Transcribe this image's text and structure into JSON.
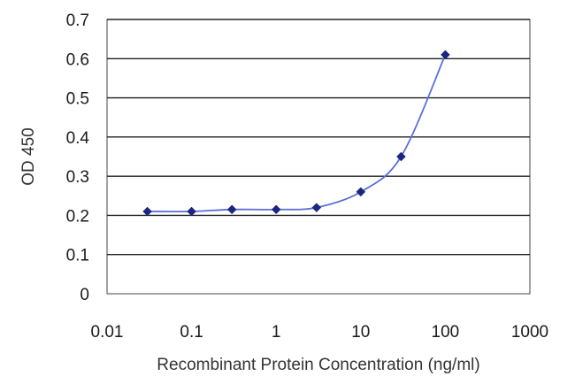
{
  "chart_data": {
    "type": "line",
    "title": "",
    "xlabel": "Recombinant Protein Concentration (ng/ml)",
    "ylabel": "OD 450",
    "x_scale": "log",
    "xlim": [
      0.01,
      1000
    ],
    "ylim": [
      0,
      0.7
    ],
    "x_ticks": [
      0.01,
      0.1,
      1,
      10,
      100,
      1000
    ],
    "x_tick_labels": [
      "0.01",
      "0.1",
      "1",
      "10",
      "100",
      "1000"
    ],
    "y_ticks": [
      0,
      0.1,
      0.2,
      0.3,
      0.4,
      0.5,
      0.6,
      0.7
    ],
    "y_tick_labels": [
      "0",
      "0.1",
      "0.2",
      "0.3",
      "0.4",
      "0.5",
      "0.6",
      "0.7"
    ],
    "grid": "horizontal",
    "legend": "none",
    "series": [
      {
        "x": [
          0.03,
          0.1,
          0.3,
          1,
          3,
          10,
          30,
          100
        ],
        "y": [
          0.21,
          0.21,
          0.215,
          0.215,
          0.22,
          0.26,
          0.35,
          0.61
        ],
        "color": "#1f2d8c",
        "marker": "diamond"
      }
    ],
    "colors": {
      "line": "#5a6fd6",
      "marker": "#1a2680",
      "grid": "#222222",
      "plot_border": "#444444",
      "text": "#1a1a1a"
    }
  }
}
